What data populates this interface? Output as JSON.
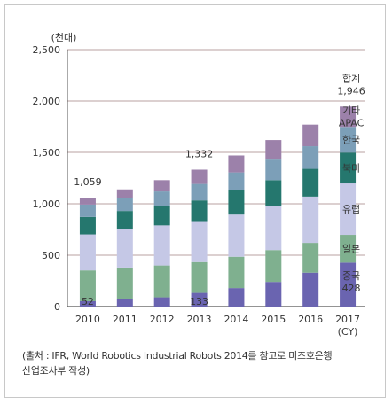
{
  "chart_data": {
    "type": "bar",
    "stacked": true,
    "unit_label": "(천대)",
    "categories": [
      "2010",
      "2011",
      "2012",
      "2013",
      "2014",
      "2015",
      "2016",
      "2017"
    ],
    "x_extra_label": "(CY)",
    "ylim": [
      0,
      2500
    ],
    "yticks": [
      "0",
      "500",
      "1,000",
      "1,500",
      "2,000",
      "2,500"
    ],
    "grid": true,
    "series": [
      {
        "name": "중국",
        "color": "#6a64b0",
        "values": [
          52,
          70,
          90,
          133,
          180,
          240,
          330,
          428
        ]
      },
      {
        "name": "일본",
        "color": "#7fb08f",
        "values": [
          300,
          310,
          310,
          300,
          305,
          310,
          290,
          270
        ]
      },
      {
        "name": "유럽",
        "color": "#c5c8e6",
        "values": [
          350,
          370,
          390,
          390,
          410,
          430,
          450,
          500
        ]
      },
      {
        "name": "북미",
        "color": "#25776e",
        "values": [
          170,
          180,
          190,
          210,
          240,
          250,
          270,
          300
        ]
      },
      {
        "name": "한국",
        "color": "#7c9fb8",
        "values": [
          120,
          130,
          140,
          160,
          170,
          200,
          220,
          250
        ]
      },
      {
        "name": "기타 APAC",
        "color": "#9c81aa",
        "values": [
          67,
          80,
          110,
          139,
          165,
          190,
          210,
          198
        ]
      }
    ],
    "total_labels": [
      {
        "category": "2010",
        "text": "1,059"
      },
      {
        "category": "2013",
        "text": "1,332"
      }
    ],
    "bar_value_labels": [
      {
        "category": "2010",
        "text": "52"
      },
      {
        "category": "2013",
        "text": "133"
      }
    ],
    "last_bar_labels": {
      "total_title": "합계",
      "total_value": "1,946",
      "apac_line1": "기타",
      "apac_line2": "APAC",
      "korea": "한국",
      "na": "북미",
      "europe": "유럽",
      "japan": "일본",
      "china": "중국",
      "china_value": "428"
    }
  },
  "caption": {
    "line1": "(출처 : IFR, World Robotics Industrial Robots 2014를 참고로 미즈호은행",
    "line2": "산업조사부 작성)"
  }
}
